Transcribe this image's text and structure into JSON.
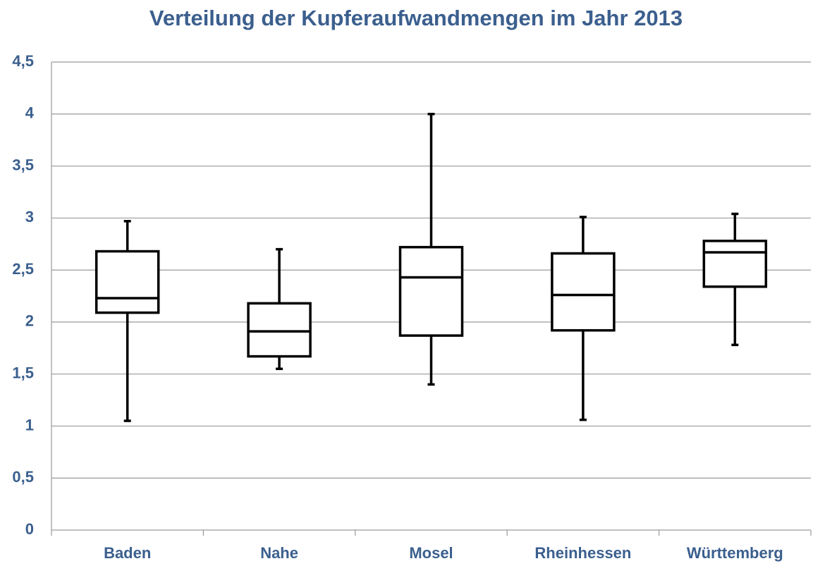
{
  "chart_data": {
    "type": "box",
    "title": "Verteilung der Kupferaufwandmengen im Jahr 2013",
    "categories": [
      "Baden",
      "Nahe",
      "Mosel",
      "Rheinhessen",
      "Württemberg"
    ],
    "min": [
      1.05,
      1.55,
      1.4,
      1.06,
      1.78
    ],
    "q1": [
      2.09,
      1.67,
      1.87,
      1.92,
      2.34
    ],
    "median": [
      2.23,
      1.91,
      2.43,
      2.26,
      2.67
    ],
    "q3": [
      2.68,
      2.18,
      2.72,
      2.66,
      2.78
    ],
    "max": [
      2.97,
      2.7,
      4.0,
      3.01,
      3.04
    ],
    "color": "#000000",
    "ylim": [
      0,
      4.5
    ],
    "yticks": [
      0,
      {
        "value": 0.5,
        "label": "0,5"
      },
      1,
      {
        "value": 1.5,
        "label": "1,5"
      },
      2,
      {
        "value": 2.5,
        "label": "2,5"
      },
      3,
      {
        "value": 3.5,
        "label": "3,5"
      },
      4,
      {
        "value": 4.5,
        "label": "4,5"
      }
    ],
    "grid": true
  }
}
